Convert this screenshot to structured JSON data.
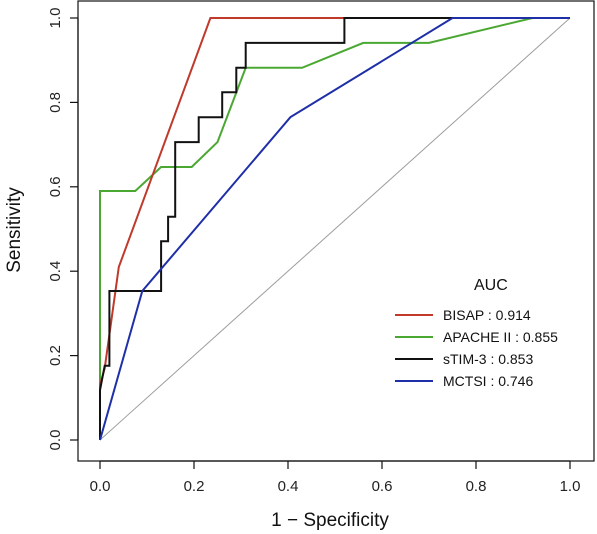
{
  "chart_data": {
    "type": "line",
    "xlabel": "1 − Specificity",
    "ylabel": "Sensitivity",
    "xlim": [
      0,
      1
    ],
    "ylim": [
      0,
      1
    ],
    "xticks": [
      "0.0",
      "0.2",
      "0.4",
      "0.6",
      "0.8",
      "1.0"
    ],
    "yticks": [
      "0.0",
      "0.2",
      "0.4",
      "0.6",
      "0.8",
      "1.0"
    ],
    "grid": false,
    "legend": {
      "title": "AUC",
      "position": "bottom-right"
    },
    "reference_line": {
      "color": "#9e9e9e",
      "points": [
        [
          0,
          0
        ],
        [
          1,
          1
        ]
      ]
    },
    "series": [
      {
        "name": "APACHE II : 0.855",
        "color": "#4aa832",
        "points": [
          [
            0,
            0
          ],
          [
            0,
            0.59
          ],
          [
            0.075,
            0.59
          ],
          [
            0.13,
            0.647
          ],
          [
            0.195,
            0.647
          ],
          [
            0.25,
            0.706
          ],
          [
            0.31,
            0.882
          ],
          [
            0.43,
            0.882
          ],
          [
            0.56,
            0.941
          ],
          [
            0.7,
            0.941
          ],
          [
            0.92,
            1.0
          ],
          [
            1.0,
            1.0
          ]
        ]
      },
      {
        "name": "BISAP : 0.914",
        "color": "#c0392b",
        "points": [
          [
            0,
            0
          ],
          [
            0.0,
            0.13
          ],
          [
            0.01,
            0.17
          ],
          [
            0.04,
            0.41
          ],
          [
            0.235,
            1.0
          ],
          [
            1.0,
            1.0
          ]
        ]
      },
      {
        "name": "sTIM-3 : 0.853",
        "color": "#111111",
        "points": [
          [
            0,
            0
          ],
          [
            0.0,
            0.118
          ],
          [
            0.01,
            0.176
          ],
          [
            0.02,
            0.176
          ],
          [
            0.02,
            0.353
          ],
          [
            0.13,
            0.353
          ],
          [
            0.13,
            0.471
          ],
          [
            0.145,
            0.471
          ],
          [
            0.145,
            0.529
          ],
          [
            0.16,
            0.529
          ],
          [
            0.16,
            0.706
          ],
          [
            0.21,
            0.706
          ],
          [
            0.21,
            0.765
          ],
          [
            0.26,
            0.765
          ],
          [
            0.26,
            0.824
          ],
          [
            0.29,
            0.824
          ],
          [
            0.29,
            0.882
          ],
          [
            0.31,
            0.882
          ],
          [
            0.31,
            0.941
          ],
          [
            0.52,
            0.941
          ],
          [
            0.52,
            1.0
          ],
          [
            1.0,
            1.0
          ]
        ]
      },
      {
        "name": "MCTSI : 0.746",
        "color": "#1f2fa8",
        "points": [
          [
            0,
            0
          ],
          [
            0.09,
            0.353
          ],
          [
            0.405,
            0.765
          ],
          [
            0.75,
            1.0
          ],
          [
            1.0,
            1.0
          ]
        ]
      }
    ]
  }
}
